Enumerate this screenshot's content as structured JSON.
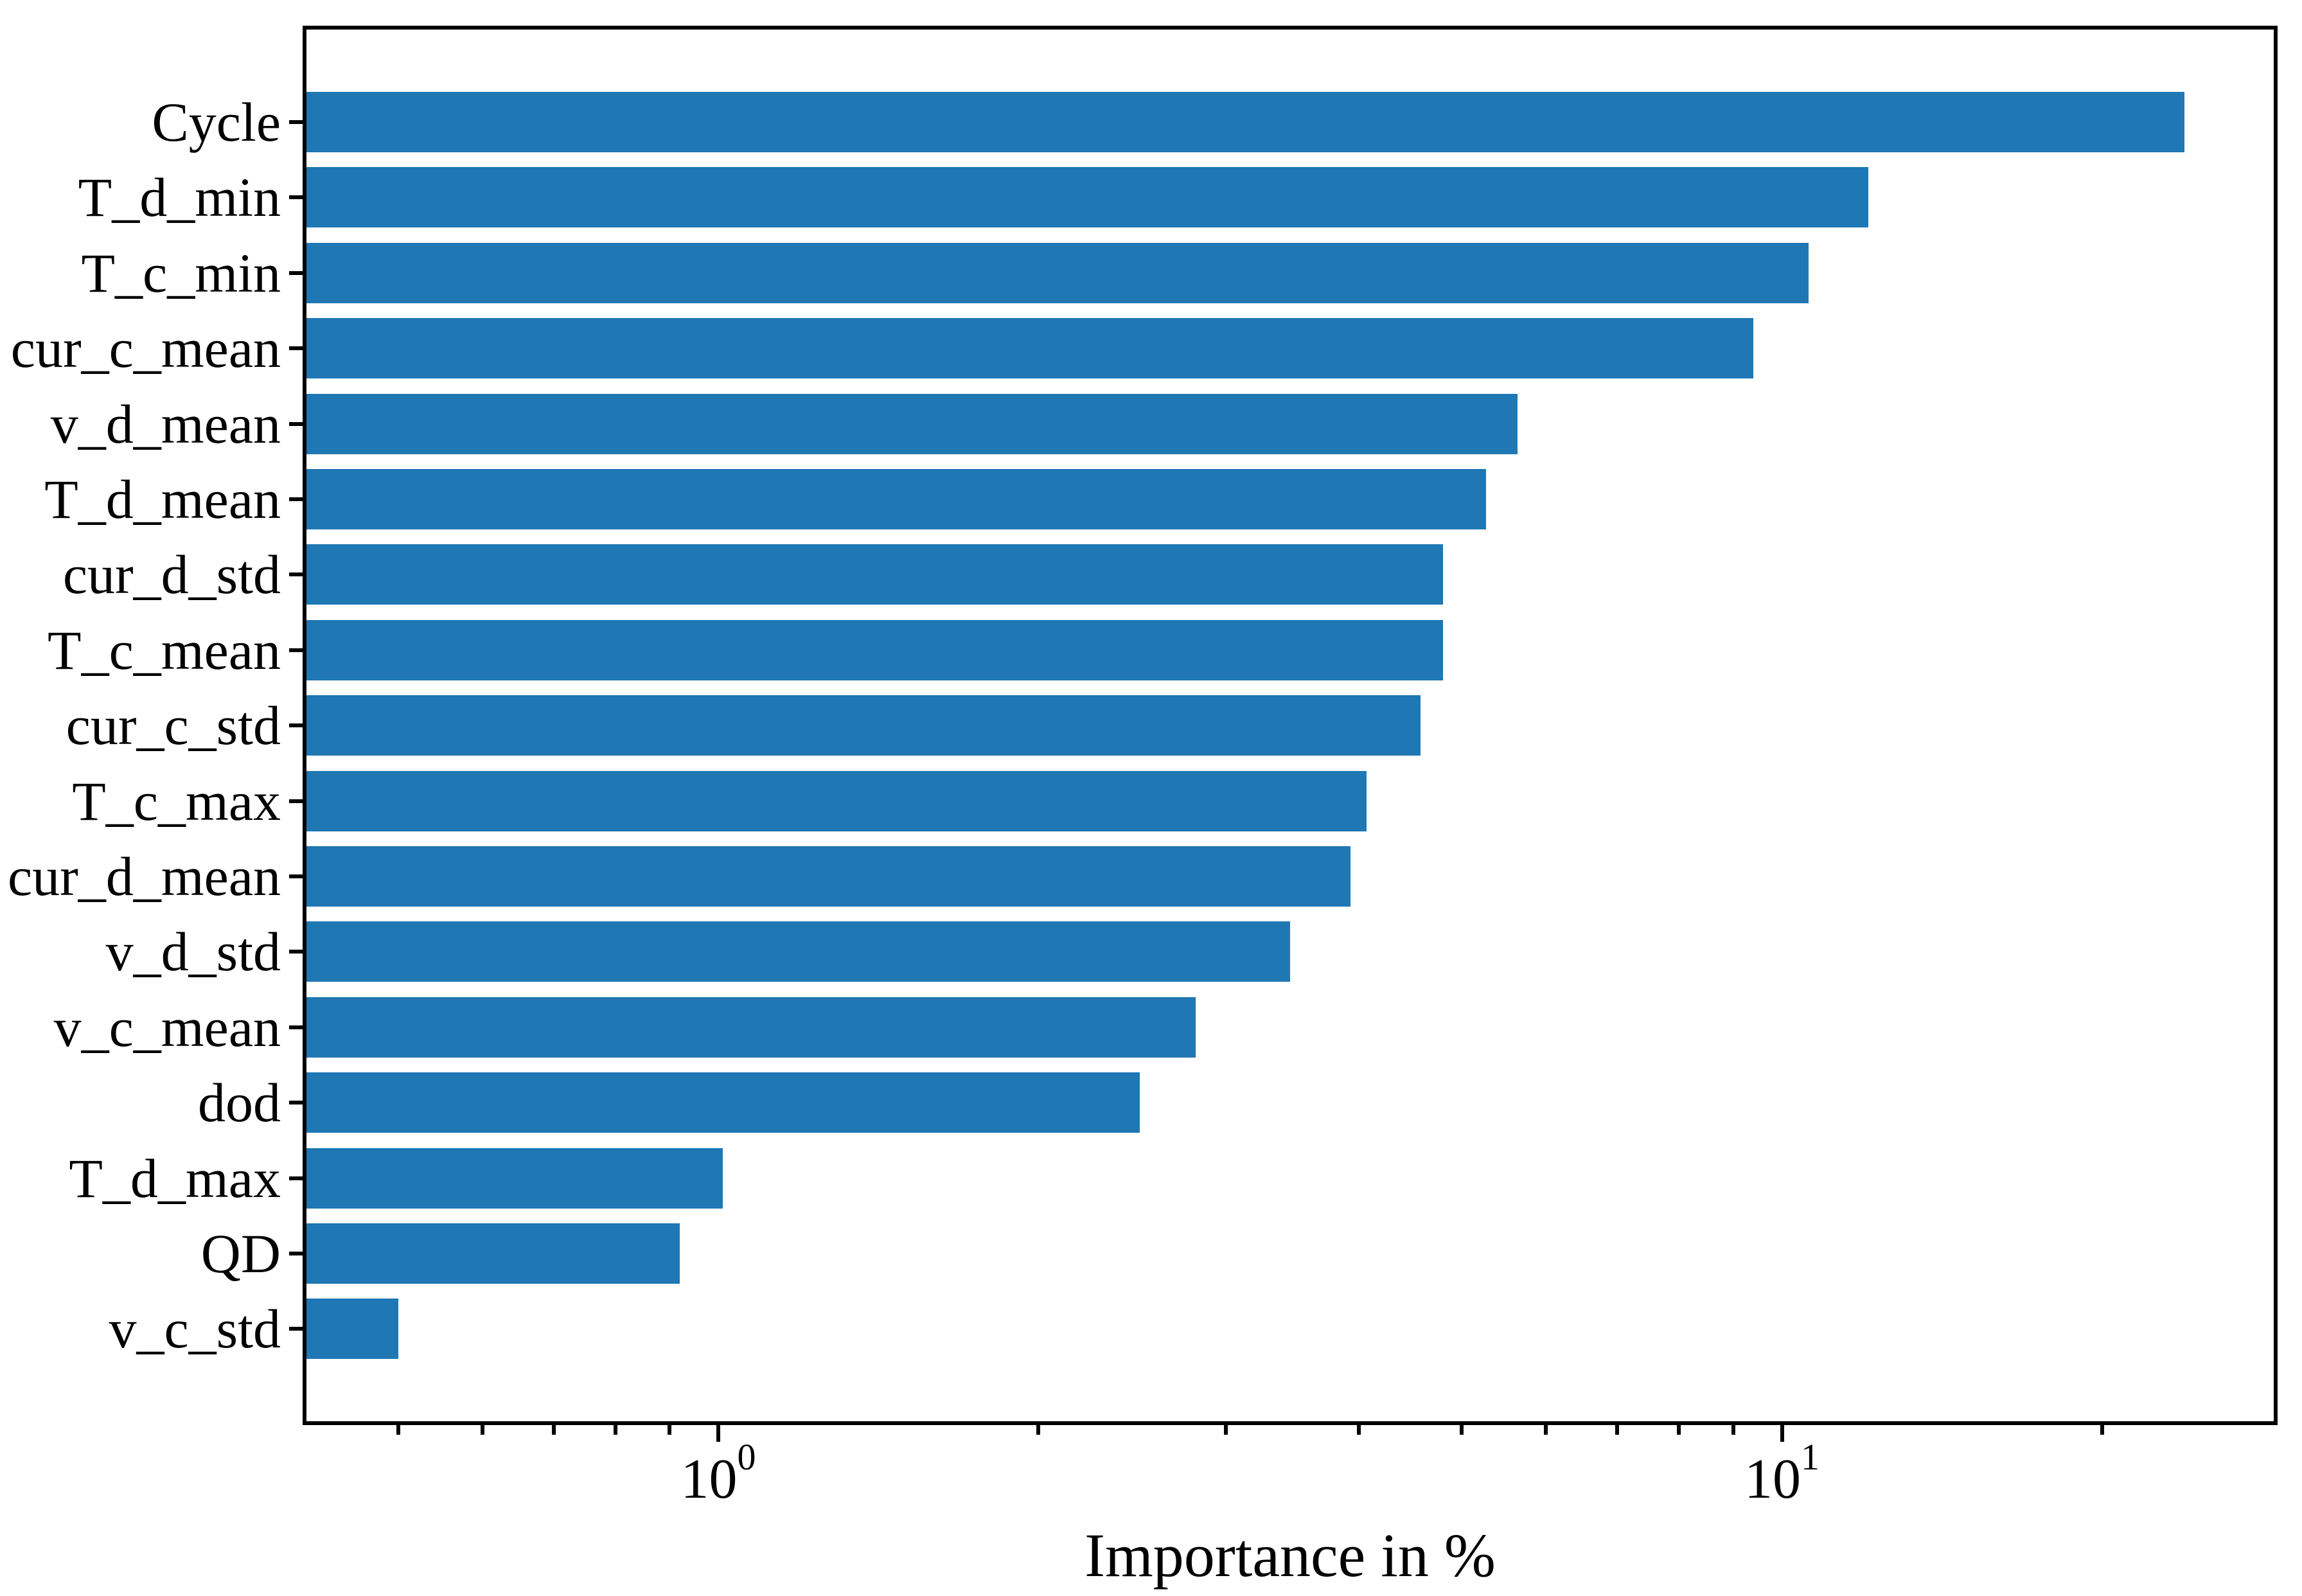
{
  "figure": {
    "background": "#ffffff",
    "text_color": "#000000"
  },
  "chart_data": {
    "type": "bar",
    "orientation": "horizontal",
    "title": "",
    "xlabel": "Importance in %",
    "ylabel": "",
    "xscale": "log",
    "xlim": [
      0.41,
      29.0
    ],
    "grid": false,
    "legend": null,
    "bar_color": "#1f77b4",
    "categories": [
      "Cycle",
      "T_d_min",
      "T_c_min",
      "cur_c_mean",
      "v_d_mean",
      "T_d_mean",
      "cur_d_std",
      "T_c_mean",
      "cur_c_std",
      "T_c_max",
      "cur_d_mean",
      "v_d_std",
      "v_c_mean",
      "dod",
      "T_d_max",
      "QD",
      "v_c_std"
    ],
    "values": [
      23.9,
      12.05,
      10.6,
      9.4,
      5.64,
      5.27,
      4.8,
      4.8,
      4.57,
      4.07,
      3.93,
      3.45,
      2.81,
      2.49,
      1.01,
      0.92,
      0.5
    ],
    "x_major_ticks": [
      {
        "value": 1,
        "base": "10",
        "exp": "0"
      },
      {
        "value": 10,
        "base": "10",
        "exp": "1"
      }
    ],
    "x_minor_ticks": [
      0.5,
      0.6,
      0.7,
      0.8,
      0.9,
      2,
      3,
      4,
      5,
      6,
      7,
      8,
      9,
      20
    ]
  }
}
